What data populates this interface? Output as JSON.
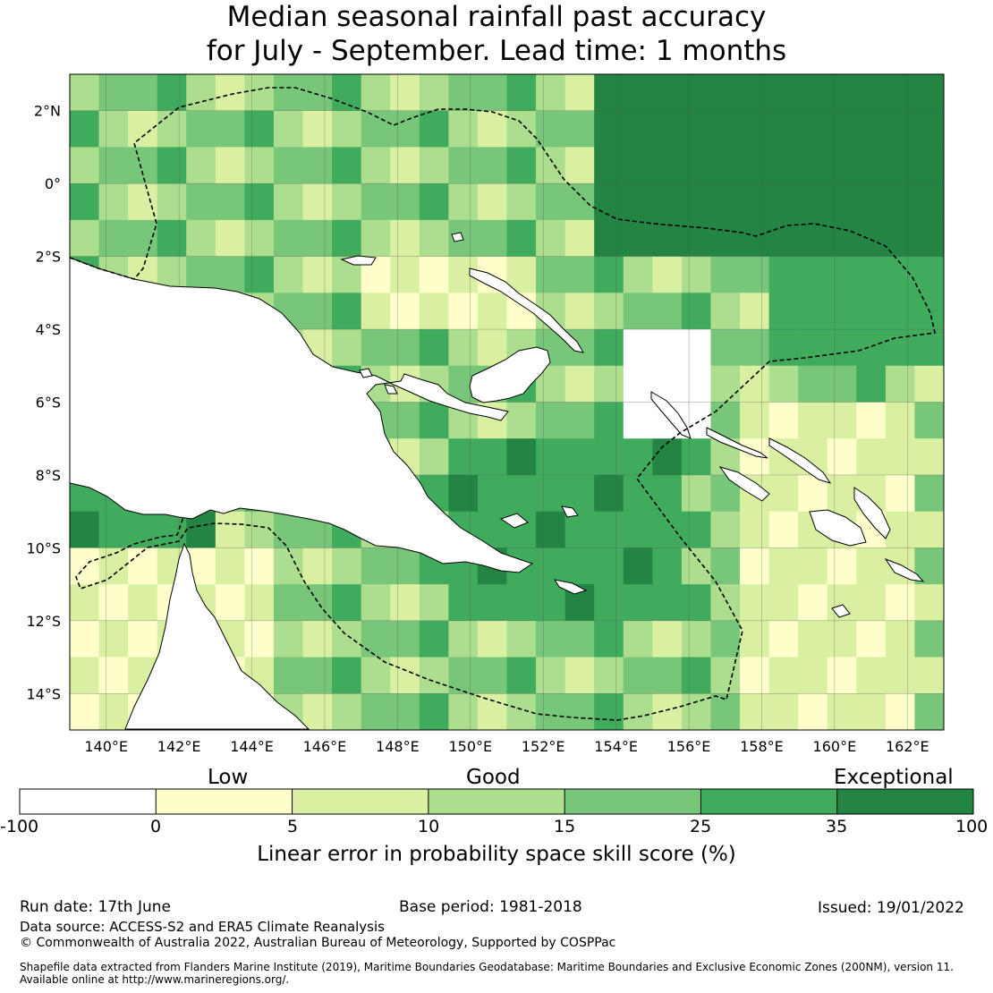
{
  "title": {
    "line1": "Median seasonal rainfall past accuracy",
    "line2": "for July - September. Lead time: 1 months"
  },
  "map": {
    "lat_labels": [
      "2°N",
      "0°",
      "2°S",
      "4°S",
      "6°S",
      "8°S",
      "10°S",
      "12°S",
      "14°S"
    ],
    "lon_labels": [
      "140°E",
      "142°E",
      "144°E",
      "146°E",
      "148°E",
      "150°E",
      "152°E",
      "154°E",
      "156°E",
      "158°E",
      "160°E",
      "162°E"
    ],
    "lat_range": [
      -15,
      3
    ],
    "lon_range": [
      139,
      163
    ],
    "land_color": "#ffffff",
    "coastline_color": "#000000",
    "boundary_style": "dashed"
  },
  "colorbar": {
    "categories": [
      "Low",
      "Good",
      "Exceptional"
    ],
    "ticks": [
      "-100",
      "0",
      "5",
      "10",
      "15",
      "25",
      "35",
      "100"
    ],
    "colors": [
      "#ffffff",
      "#ffffcc",
      "#d9f0a3",
      "#addd8e",
      "#78c679",
      "#41ab5d",
      "#238443"
    ],
    "title": "Linear error in probability space skill score (%)"
  },
  "footer": {
    "run_date": "Run date: 17th June",
    "base_period": "Base period: 1981-2018",
    "issued": "Issued: 19/01/2022",
    "data_source": "Data source: ACCESS-S2 and ERA5 Climate Reanalysis",
    "copyright": "© Commonwealth of Australia 2022, Australian Bureau of Meteorology, Supported by COSPPac",
    "shapefile_line1": "Shapefile data extracted from Flanders Marine Institute (2019), Maritime Boundaries Geodatabase: Maritime Boundaries and Exclusive Economic Zones (200NM), version 11.",
    "shapefile_line2": "Available online at http://www.marineregions.org/."
  }
}
